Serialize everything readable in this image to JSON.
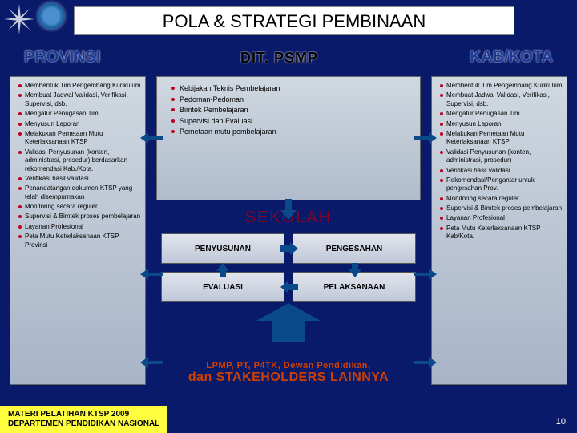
{
  "title": "POLA & STRATEGI PEMBINAAN",
  "headers": {
    "prov": "PROVINSI",
    "dit": "DIT. PSMP",
    "kab": "KAB/KOTA"
  },
  "provinsi": [
    "Membentuk Tim Pengembang Kurikulum",
    "Membuat Jadwal Validasi, Verifikasi, Supervisi, dsb.",
    "Mengatur Penugasan Tim",
    "Menyusun Laporan",
    "Melakukan Pemetaan Mutu Keterlaksanaan KTSP",
    "Validasi Penyusunan (konten, administrasi, prosedur) berdasarkan rekomendasi Kab./Kota.",
    "Verifikasi hasil validasi.",
    "Penandatangan dokumen KTSP yang telah disempurnakan",
    "Monitoring secara reguler",
    "Supervisi & Bimtek proses pembelajaran",
    "Layanan Profesional",
    "Peta Mutu Keterlaksanaan KTSP Provinsi"
  ],
  "dit": [
    "Kebijakan Teknis Pembelajaran",
    "Pedoman-Pedoman",
    "Bimtek Pembelajaran",
    "Supervisi dan Evaluasi",
    "Pemetaan mutu pembelajaran"
  ],
  "sekolah": {
    "title": "SEKOLAH",
    "cells": [
      "PENYUSUNAN",
      "PENGESAHAN",
      "EVALUASI",
      "PELAKSANAAN"
    ]
  },
  "kab": [
    "Membentuk Tim Pengembang Kurikulum",
    "Membuat Jadwal Validasi, Verifikasi, Supervisi, dsb.",
    "Mengatur Penugasan Tim",
    "Menyusun Laporan",
    "Melakukan Pemetaan Mutu Keterlaksanaan KTSP",
    "Validasi Penyusunan (konten, administrasi, prosedur)",
    "Verifikasi hasil validasi.",
    "Rekomendasi/Pengantar untuk pengesahan Prov.",
    "Monitoring secara reguler",
    "Supervisi & Bimtek proses pembelajaran",
    "Layanan Profesional",
    "Peta Mutu Keterlaksanaan KTSP Kab/Kota."
  ],
  "stakeholders": {
    "line1": "LPMP, PT, P4TK, Dewan Pendidikan,",
    "line2": "dan STAKEHOLDERS LAINNYA"
  },
  "footer": {
    "l1": "MATERI PELATIHAN KTSP 2009",
    "l2": "DEPARTEMEN PENDIDIKAN NASIONAL"
  },
  "page": "10",
  "colors": {
    "arrow": "#0a4a8a"
  }
}
